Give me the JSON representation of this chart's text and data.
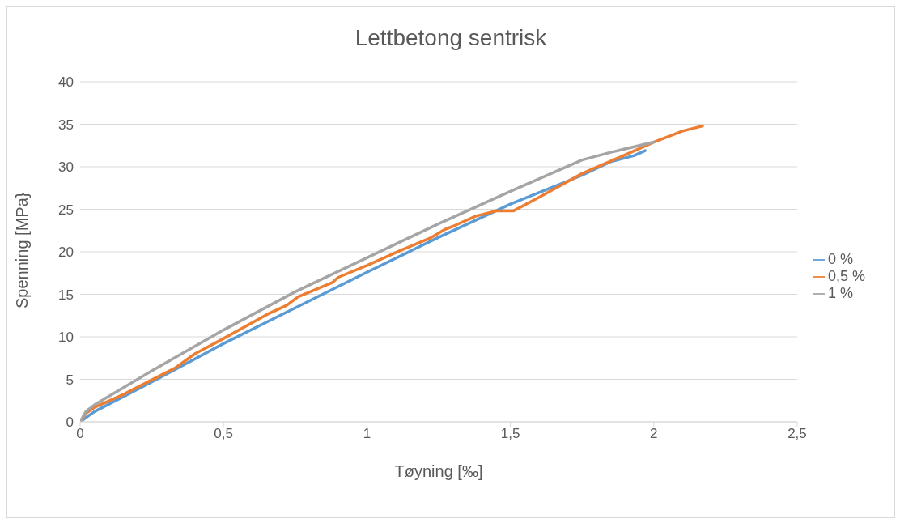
{
  "chart_data": {
    "type": "line",
    "title": "Lettbetong sentrisk",
    "xlabel": "Tøyning [‰]",
    "ylabel": "Spenning [MPa}",
    "xlim": [
      0,
      2.5
    ],
    "ylim": [
      0,
      40
    ],
    "xticks": [
      0,
      {
        "value": 0.5,
        "label": "0,5"
      },
      1,
      {
        "value": 1.5,
        "label": "1,5"
      },
      2,
      {
        "value": 2.5,
        "label": "2,5"
      }
    ],
    "yticks": [
      0,
      5,
      10,
      15,
      20,
      25,
      30,
      35,
      40
    ],
    "grid": "y",
    "legend": "right",
    "marker": "none",
    "line_style": "solid",
    "series": [
      {
        "name": "0 %",
        "color": "#5b9bd5",
        "x": [
          0,
          0.05,
          0.25,
          0.5,
          0.75,
          1,
          1.25,
          1.5,
          1.75,
          1.85,
          1.93,
          1.97
        ],
        "values": [
          0,
          1.2,
          4.7,
          9.2,
          13.4,
          17.6,
          21.7,
          25.6,
          29.0,
          30.6,
          31.3,
          31.9
        ]
      },
      {
        "name": "0,5 %",
        "color": "#ed7d31",
        "x": [
          0,
          0.02,
          0.05,
          0.15,
          0.3,
          0.33,
          0.4,
          0.5,
          0.65,
          0.72,
          0.76,
          0.88,
          0.9,
          1.0,
          1.12,
          1.22,
          1.27,
          1.3,
          1.38,
          1.45,
          1.51,
          1.6,
          1.75,
          1.9,
          2.0,
          2.1,
          2.17
        ],
        "values": [
          0,
          1,
          1.7,
          3.2,
          5.8,
          6.3,
          8.0,
          9.8,
          12.6,
          13.7,
          14.7,
          16.4,
          17.0,
          18.4,
          20.2,
          21.6,
          22.6,
          23.0,
          24.2,
          24.8,
          24.8,
          26.4,
          29.2,
          31.4,
          32.9,
          34.2,
          34.8
        ]
      },
      {
        "name": "1 %",
        "color": "#a5a5a5",
        "x": [
          0,
          0.02,
          0.05,
          0.1,
          0.25,
          0.5,
          0.75,
          1,
          1.25,
          1.5,
          1.75,
          1.85,
          1.95,
          2.0
        ],
        "values": [
          0,
          1.2,
          2.0,
          3.0,
          6.0,
          10.8,
          15.3,
          19.3,
          23.3,
          27.1,
          30.8,
          31.7,
          32.5,
          32.9
        ]
      }
    ]
  }
}
